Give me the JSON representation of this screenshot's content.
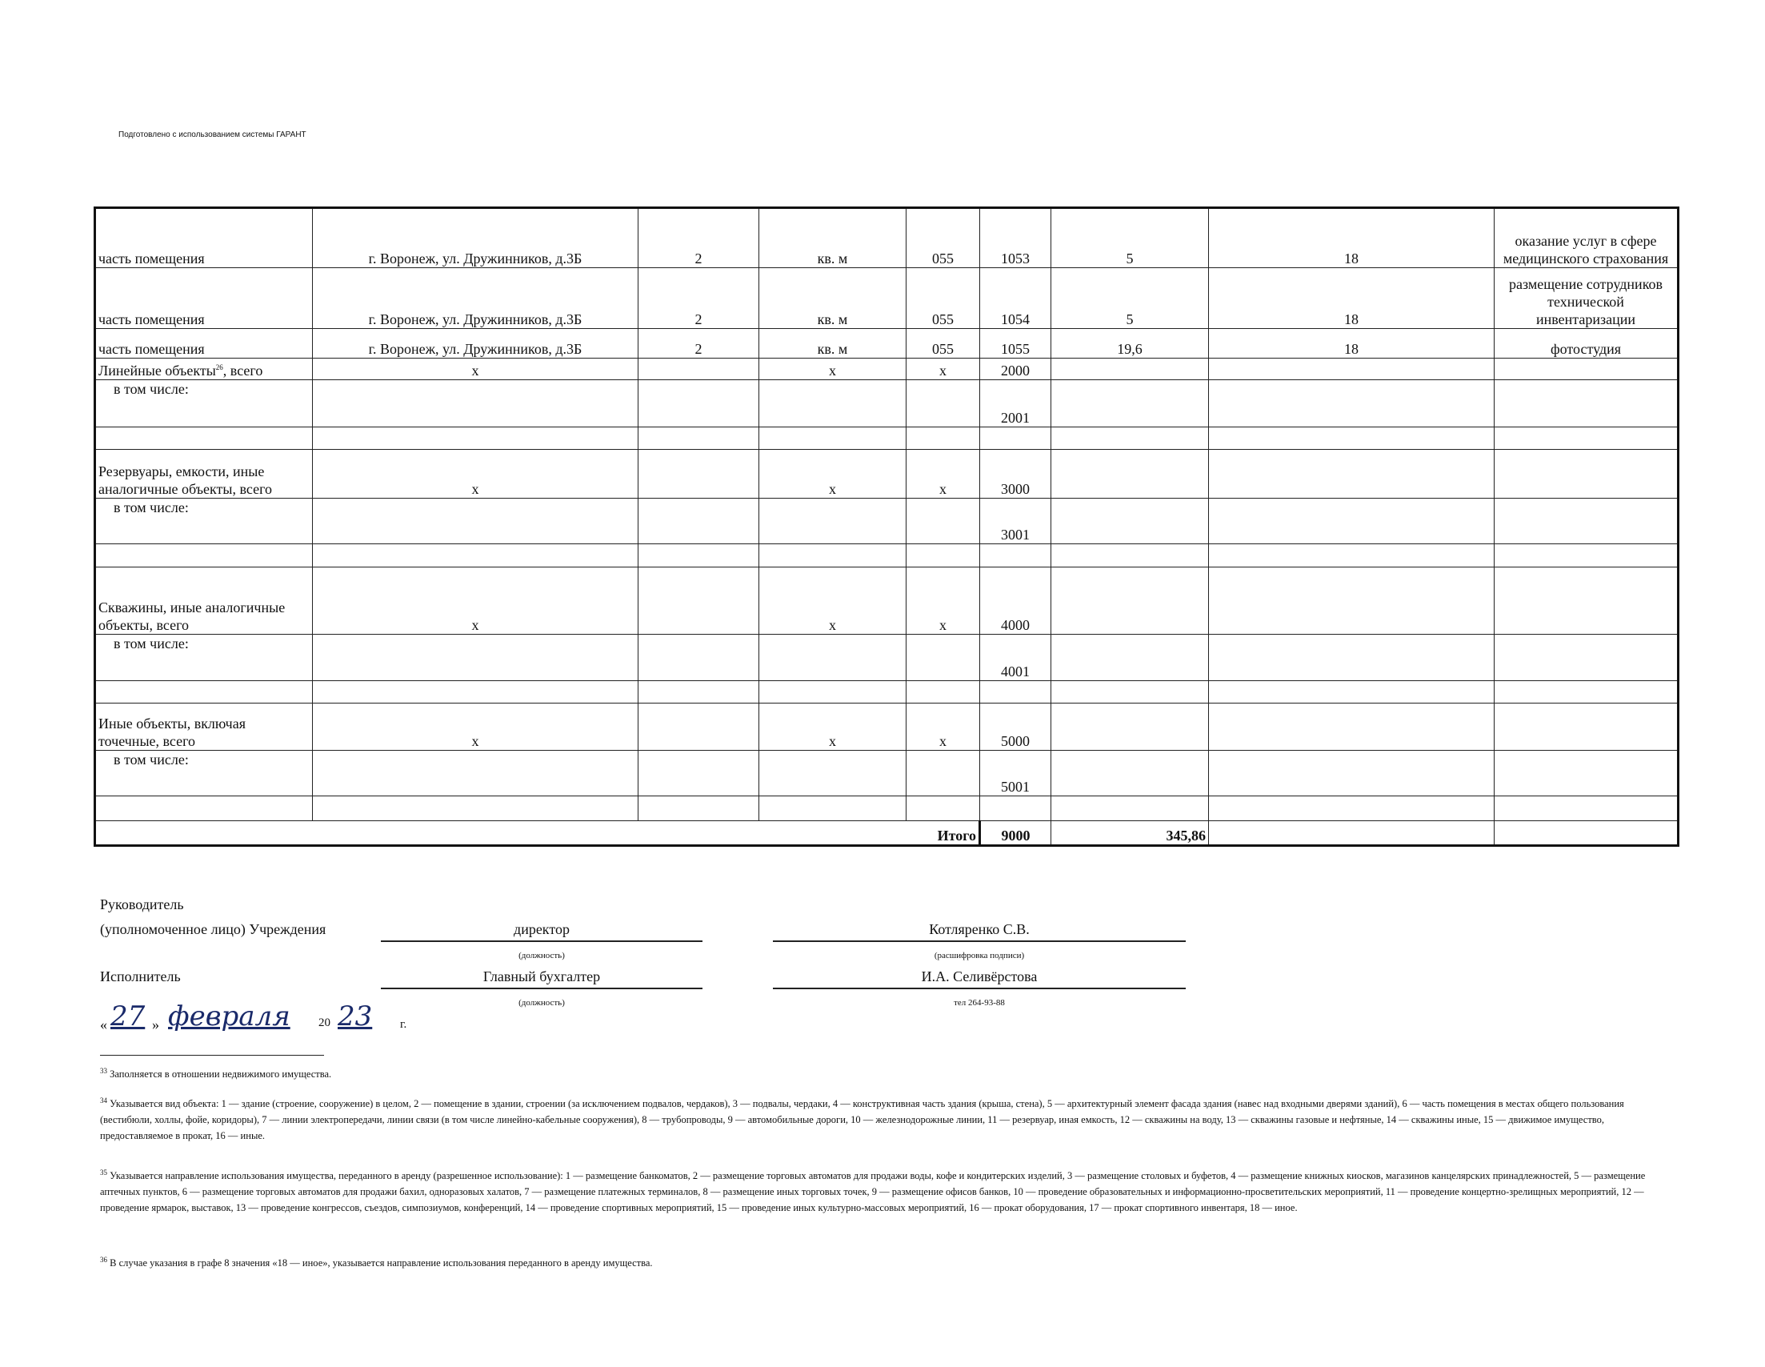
{
  "header": "Подготовлено с использованием системы ГАРАНТ",
  "rows": [
    {
      "name": "часть помещения",
      "addr": "г. Воронеж, ул. Дружинников, д.3Б",
      "n": "2",
      "unit": "кв. м",
      "okei": "055",
      "code": "1053",
      "area": "5",
      "type": "18",
      "purpose": "оказание услуг в сфере медицинского страхования"
    },
    {
      "name": "часть помещения",
      "addr": "г. Воронеж, ул. Дружинников, д.3Б",
      "n": "2",
      "unit": "кв. м",
      "okei": "055",
      "code": "1054",
      "area": "5",
      "type": "18",
      "purpose": "размещение сотрудников технической инвентаризации"
    },
    {
      "name": "часть помещения",
      "addr": "г. Воронеж, ул. Дружинников, д.3Б",
      "n": "2",
      "unit": "кв. м",
      "okei": "055",
      "code": "1055",
      "area": "19,6",
      "type": "18",
      "purpose": "фотостудия"
    },
    {
      "name": "Линейные объекты",
      "sup": "26",
      "name2": ", всего",
      "addr": "x",
      "n": "",
      "unit": "x",
      "okei": "x",
      "code": "2000"
    },
    {
      "name": "в том числе:",
      "code": "2001",
      "indent": true
    },
    {},
    {
      "name": "Резервуары, емкости, иные аналогичные объекты, всего",
      "addr": "x",
      "unit": "x",
      "okei": "x",
      "code": "3000"
    },
    {
      "name": "в том числе:",
      "code": "3001",
      "indent": true
    },
    {},
    {
      "name": "Скважины, иные аналогичные объекты, всего",
      "addr": "x",
      "unit": "x",
      "okei": "x",
      "code": "4000"
    },
    {
      "name": "в том числе:",
      "code": "4001",
      "indent": true
    },
    {},
    {
      "name": "Иные объекты, включая точечные, всего",
      "addr": "x",
      "unit": "x",
      "okei": "x",
      "code": "5000"
    },
    {
      "name": "в том числе:",
      "code": "5001",
      "indent": true
    },
    {}
  ],
  "total": {
    "label": "Итого",
    "code": "9000",
    "area": "345,86"
  },
  "signatures": {
    "head_label1": "Руководитель",
    "head_label2": "(уполномоченное лицо) Учреждения",
    "head_position": "директор",
    "head_name": "Котляренко С.В.",
    "position_caption": "(должность)",
    "name_caption": "(расшифровка подписи)",
    "exec_label": "Исполнитель",
    "exec_position": "Главный бухгалтер",
    "exec_name": "И.А. Селивёрстова",
    "exec_position_caption": "(должность)",
    "phone": "тел 264-93-88",
    "date_open": "«",
    "day": "27",
    "date_close": "»",
    "month": "февраля",
    "year_prefix": "20",
    "year": "23",
    "year_suffix": "г."
  },
  "footnotes": [
    {
      "num": "33",
      "text": "Заполняется в отношении недвижимого имущества."
    },
    {
      "num": "34",
      "text": "Указывается вид объекта: 1 — здание (строение, сооружение) в целом, 2 — помещение в здании, строении (за исключением подвалов, чердаков), 3 — подвалы, чердаки, 4 — конструктивная часть здания (крыша, стена), 5 — архитектурный элемент фасада здания (навес над входными дверями зданий), 6 — часть помещения в местах общего пользования (вестибюли, холлы, фойе, коридоры), 7 — линии электропередачи, линии связи (в том числе линейно-кабельные сооружения), 8 — трубопроводы, 9 — автомобильные дороги, 10 — железнодорожные линии, 11 — резервуар, иная емкость, 12 — скважины на воду, 13 — скважины газовые и нефтяные, 14 — скважины иные, 15 — движимое имущество, предоставляемое в прокат, 16 — иные."
    },
    {
      "num": "35",
      "text": "Указывается направление использования имущества, переданного в аренду (разрешенное использование): 1 — размещение банкоматов, 2 — размещение торговых автоматов для продажи воды, кофе и кондитерских изделий, 3 — размещение столовых и буфетов, 4 — размещение книжных киосков, магазинов канцелярских принадлежностей, 5 — размещение аптечных пунктов, 6 — размещение торговых автоматов для продажи бахил, одноразовых халатов, 7 — размещение платежных терминалов, 8 — размещение иных торговых точек, 9 — размещение офисов банков, 10 — проведение образовательных и информационно-просветительских мероприятий, 11 — проведение концертно-зрелищных мероприятий, 12 — проведение ярмарок, выставок, 13 — проведение конгрессов, съездов, симпозиумов, конференций, 14 — проведение спортивных мероприятий, 15 — проведение иных культурно-массовых мероприятий, 16 — прокат оборудования, 17 — прокат спортивного инвентаря, 18 — иное."
    },
    {
      "num": "36",
      "text": "В случае указания в графе 8 значения «18 — иное», указывается направление использования переданного в аренду имущества."
    }
  ]
}
